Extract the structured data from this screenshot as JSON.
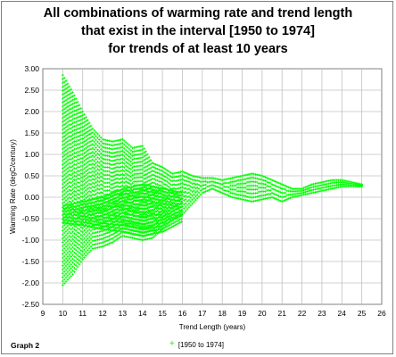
{
  "chart_data": {
    "type": "scatter",
    "title_lines": [
      "All combinations of warming rate and trend length",
      "that exist in the interval [1950 to 1974]",
      "for trends of at least 10 years"
    ],
    "xlabel": "Trend Length  (years)",
    "ylabel": "Warming Rate  (degC/century)",
    "xlim": [
      9,
      26
    ],
    "ylim": [
      -2.5,
      3.0
    ],
    "xticks": [
      9,
      10,
      11,
      12,
      13,
      14,
      15,
      16,
      17,
      18,
      19,
      20,
      21,
      22,
      23,
      24,
      25,
      26
    ],
    "yticks": [
      -2.5,
      -2.0,
      -1.5,
      -1.0,
      -0.5,
      0.0,
      0.5,
      1.0,
      1.5,
      2.0,
      2.5,
      3.0
    ],
    "ytick_labels": [
      "-2.50",
      "-2.00",
      "-1.50",
      "-1.00",
      "-0.50",
      "0.00",
      "0.50",
      "1.00",
      "1.50",
      "2.00",
      "2.50",
      "3.00"
    ],
    "grid": "on",
    "legend_position": "bottom-center",
    "color": "#00ff00",
    "series": [
      {
        "name": "[1950 to 1974]",
        "envelope": {
          "x": [
            10.0,
            10.5,
            11.0,
            11.5,
            12.0,
            12.5,
            13.0,
            13.5,
            14.0,
            14.5,
            15.0,
            15.5,
            16.0,
            16.5,
            17.0,
            17.5,
            18.0,
            18.5,
            19.0,
            19.5,
            20.0,
            20.5,
            21.0,
            21.5,
            22.0,
            22.5,
            23.0,
            23.5,
            24.0,
            24.5,
            25.0
          ],
          "upper": [
            2.85,
            2.45,
            2.0,
            1.6,
            1.35,
            1.3,
            1.35,
            1.15,
            1.2,
            0.8,
            0.7,
            0.55,
            0.6,
            0.5,
            0.45,
            0.45,
            0.4,
            0.45,
            0.5,
            0.55,
            0.5,
            0.4,
            0.3,
            0.2,
            0.2,
            0.3,
            0.35,
            0.4,
            0.4,
            0.35,
            0.3
          ],
          "lower": [
            -2.05,
            -1.8,
            -1.45,
            -1.2,
            -1.15,
            -1.05,
            -0.9,
            -0.95,
            -1.0,
            -0.95,
            -0.75,
            -0.5,
            -0.4,
            -0.15,
            0.1,
            0.2,
            0.1,
            0.0,
            -0.05,
            -0.1,
            -0.05,
            0.0,
            -0.1,
            0.0,
            0.05,
            0.1,
            0.15,
            0.2,
            0.25,
            0.25,
            0.25
          ]
        },
        "inner_band": {
          "x": [
            10.0,
            11.0,
            12.0,
            13.0,
            14.0,
            15.0,
            16.0
          ],
          "upper": [
            -0.2,
            -0.1,
            0.0,
            0.2,
            0.3,
            0.2,
            0.1
          ],
          "lower": [
            -0.6,
            -0.65,
            -0.75,
            -0.8,
            -0.9,
            -0.8,
            -0.55
          ]
        }
      }
    ],
    "footer_label": "Graph 2"
  }
}
